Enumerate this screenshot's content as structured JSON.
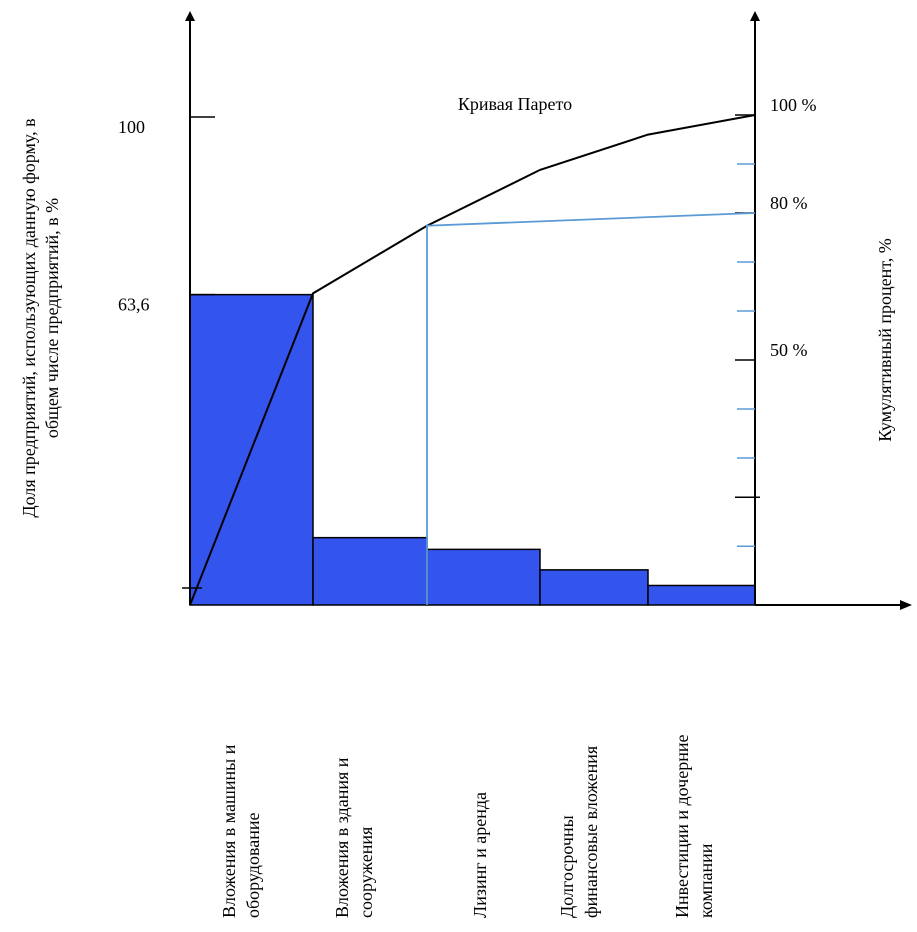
{
  "chart_data": {
    "type": "bar",
    "title": "Кривая Парето",
    "ylabel_left_line1": "Доля  предприятий, использующих данную форму, в",
    "ylabel_left_line2": "общем числе предприятий, в %",
    "ylabel_right": "Кумулятивный процент, %",
    "left_ticks": [
      {
        "value": 100,
        "label": "100"
      },
      {
        "value": 63.6,
        "label": "63,6"
      }
    ],
    "right_ticks": [
      {
        "value": 100,
        "label": "100 %"
      },
      {
        "value": 80,
        "label": "80 %"
      },
      {
        "value": 50,
        "label": "50 %"
      }
    ],
    "categories": [
      [
        "Вложения в машины и",
        "оборудование"
      ],
      [
        "Вложения в здания и",
        "сооружения"
      ],
      [
        "Лизинг и аренда"
      ],
      [
        "Долгосрочны",
        "финансовые вложения"
      ],
      [
        "Инвестиции и дочерние",
        "компании"
      ]
    ],
    "values": [
      63.6,
      13.8,
      11.4,
      7.2,
      4.0
    ],
    "cumulative": [
      0,
      63.6,
      77.4,
      88.8,
      96,
      100
    ],
    "ylim": [
      0,
      100
    ],
    "colors": {
      "bar_fill": "#3355ee",
      "bar_stroke": "#000000",
      "pareto_line": "#000000",
      "guide_line": "#5b9bd5",
      "minor_tick": "#5b9bd5"
    }
  }
}
